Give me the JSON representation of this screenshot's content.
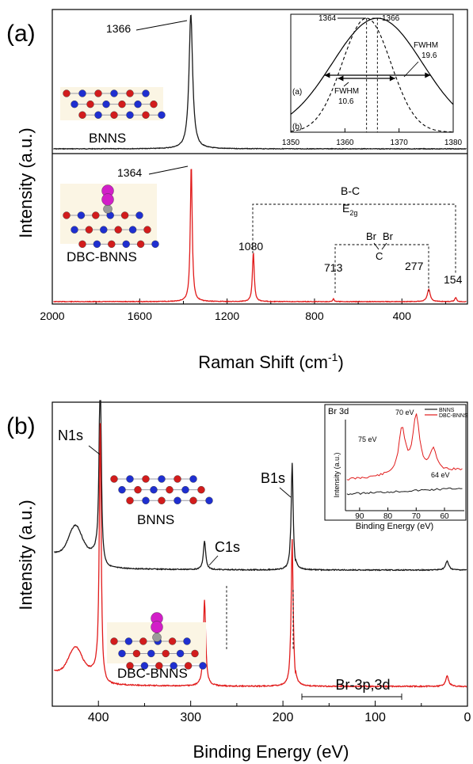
{
  "colors": {
    "bnns": "#1a1a1a",
    "dbc": "#e11b1b",
    "boron": "#1f2fd0",
    "nitrogen": "#d21c1c",
    "carbon": "#9a9a9a",
    "bromine": "#d21ec8"
  },
  "chart_data": [
    {
      "type": "line",
      "panel_label": "(a)",
      "xlabel_base": "Raman Shift (cm",
      "xlabel_sup": "-1",
      "xlabel_tail": ")",
      "ylabel": "Intensity (a.u.)",
      "xlim": [
        2000,
        100
      ],
      "xticks": [
        "2000",
        "1600",
        "1200",
        "800",
        "400"
      ],
      "xtick_values": [
        2000,
        1600,
        1200,
        800,
        400
      ],
      "series": [
        {
          "name": "BNNS",
          "peaks": [
            {
              "x": 1366,
              "height": 1.0,
              "width": 10
            }
          ]
        },
        {
          "name": "DBC-BNNS",
          "peaks": [
            {
              "x": 1364,
              "height": 1.0,
              "width": 5.3
            },
            {
              "x": 1080,
              "height": 0.36,
              "width": 5
            },
            {
              "x": 713,
              "height": 0.02,
              "width": 4
            },
            {
              "x": 277,
              "height": 0.09,
              "width": 8
            },
            {
              "x": 154,
              "height": 0.03,
              "width": 5
            }
          ]
        }
      ],
      "labels": {
        "bnns_peak": "1366",
        "dbc_peak": "1364",
        "p1080": "1080",
        "p713": "713",
        "p277": "277",
        "p154": "154",
        "bc": "B-C",
        "e2g_base": "E",
        "e2g_sub": "2g",
        "br_left": "Br",
        "br_right": "Br",
        "c": "C",
        "bnns": "BNNS",
        "dbc": "DBC-BNNS"
      },
      "inset": {
        "xlim": [
          1350,
          1380
        ],
        "xticks": [
          "1350",
          "1360",
          "1370",
          "1380"
        ],
        "xtick_values": [
          1350,
          1360,
          1370,
          1380
        ],
        "series": [
          {
            "name": "(a)",
            "center": 1366,
            "fwhm": 19.6
          },
          {
            "name": "(b)",
            "center": 1364,
            "fwhm": 10.6
          }
        ],
        "labels": {
          "peak_b": "1364",
          "peak_a": "1366",
          "fwhm_a_title": "FWHM",
          "fwhm_a": "19.6",
          "fwhm_b_title": "FWHM",
          "fwhm_b": "10.6",
          "curve_a": "(a)",
          "curve_b": "(b)"
        }
      }
    },
    {
      "type": "line",
      "panel_label": "(b)",
      "xlabel": "Binding Energy (eV)",
      "ylabel": "Intensity (a.u.)",
      "xlim": [
        450,
        0
      ],
      "xticks": [
        "400",
        "300",
        "200",
        "100",
        "0"
      ],
      "xtick_values": [
        400,
        300,
        200,
        100,
        0
      ],
      "series": [
        {
          "name": "BNNS",
          "peaks": [
            {
              "x": 398,
              "height": 1.0,
              "width": 1.2
            },
            {
              "x": 285,
              "height": 0.13,
              "width": 1.5
            },
            {
              "x": 190,
              "height": 0.5,
              "width": 1.3
            },
            {
              "x": 22,
              "height": 0.04,
              "width": 2
            }
          ]
        },
        {
          "name": "DBC-BNNS",
          "peaks": [
            {
              "x": 398,
              "height": 1.0,
              "width": 1.2
            },
            {
              "x": 285,
              "height": 0.33,
              "width": 1.5
            },
            {
              "x": 190,
              "height": 0.58,
              "width": 1.3
            },
            {
              "x": 22,
              "height": 0.04,
              "width": 2
            }
          ]
        }
      ],
      "labels": {
        "n1s": "N1s",
        "c1s": "C1s",
        "b1s": "B1s",
        "br": "Br-3p,3d",
        "bnns": "BNNS",
        "dbc": "DBC-BNNS"
      },
      "inset": {
        "title": "Br 3d",
        "xlabel": "Binding Energy (eV)",
        "ylabel": "Intensity (a.u.)",
        "xlim": [
          95,
          53
        ],
        "xticks": [
          "90",
          "80",
          "70",
          "60"
        ],
        "xtick_values": [
          90,
          80,
          70,
          60
        ],
        "legend_position": "top-right",
        "series": [
          {
            "name": "BNNS",
            "peaks": []
          },
          {
            "name": "DBC-BNNS",
            "peaks": [
              {
                "x": 75,
                "height": 0.62
              },
              {
                "x": 70,
                "height": 0.8
              },
              {
                "x": 64,
                "height": 0.3
              }
            ]
          }
        ],
        "labels": {
          "p70": "70 eV",
          "p75": "75 eV",
          "p64": "64 eV"
        }
      }
    }
  ]
}
